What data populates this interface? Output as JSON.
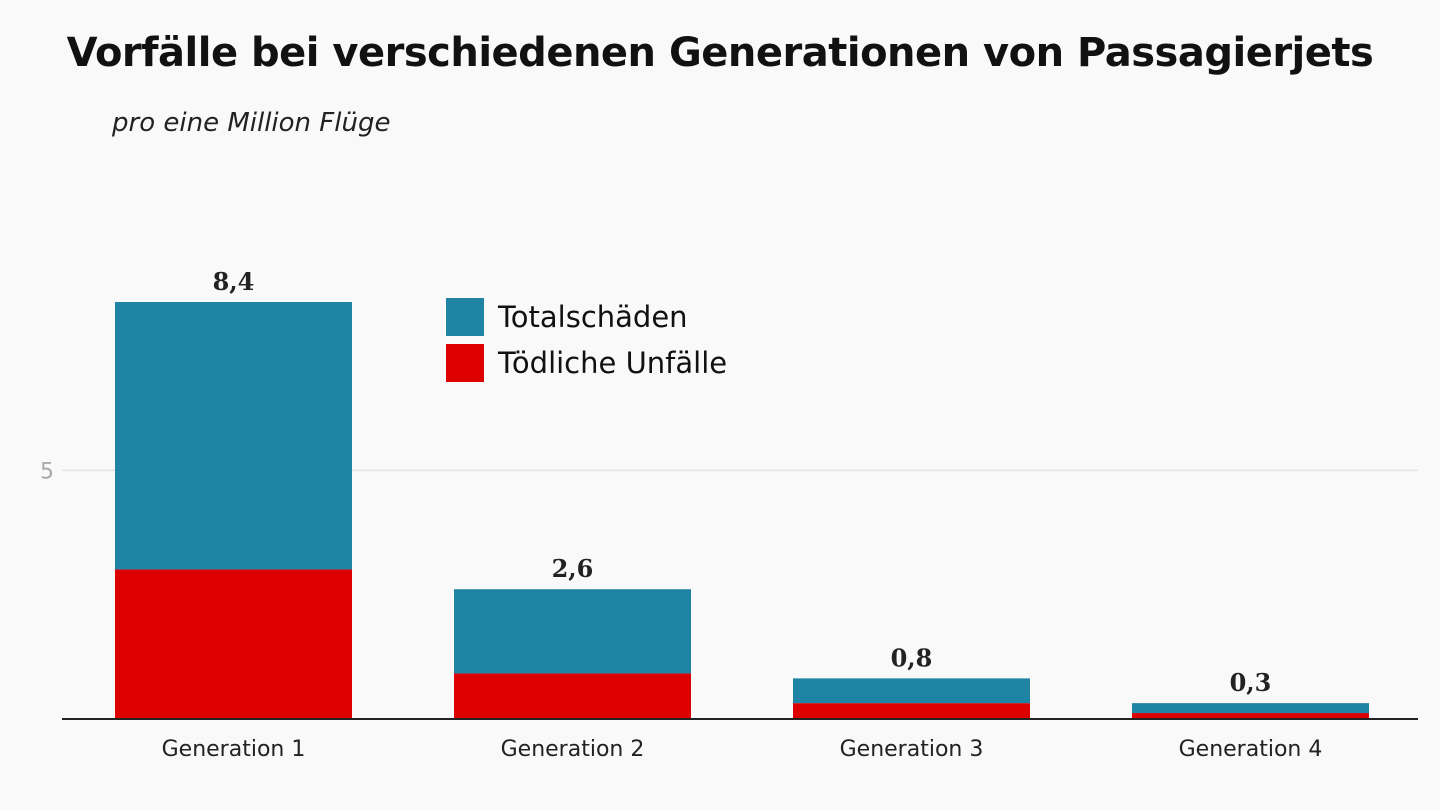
{
  "chart_data": {
    "type": "bar",
    "stacked": true,
    "title": "Vorfälle bei verschiedenen Generationen von Passagierjets",
    "subtitle": "pro eine Million Flüge",
    "categories": [
      "Generation 1",
      "Generation 2",
      "Generation 3",
      "Generation 4"
    ],
    "totals": [
      8.4,
      2.6,
      0.8,
      0.3
    ],
    "total_labels": [
      "8,4",
      "2,6",
      "0,8",
      "0,3"
    ],
    "series": [
      {
        "name": "Tödliche Unfälle",
        "color": "#dc0000",
        "values": [
          3.0,
          0.9,
          0.3,
          0.1
        ]
      },
      {
        "name": "Totalschäden",
        "color": "#1f83a3",
        "values": [
          5.4,
          1.7,
          0.5,
          0.2
        ]
      }
    ],
    "yticks": [
      {
        "value": 5,
        "label": "5"
      }
    ],
    "ylim": [
      0,
      8.4
    ],
    "grid": true,
    "legend_position": "top-center"
  }
}
